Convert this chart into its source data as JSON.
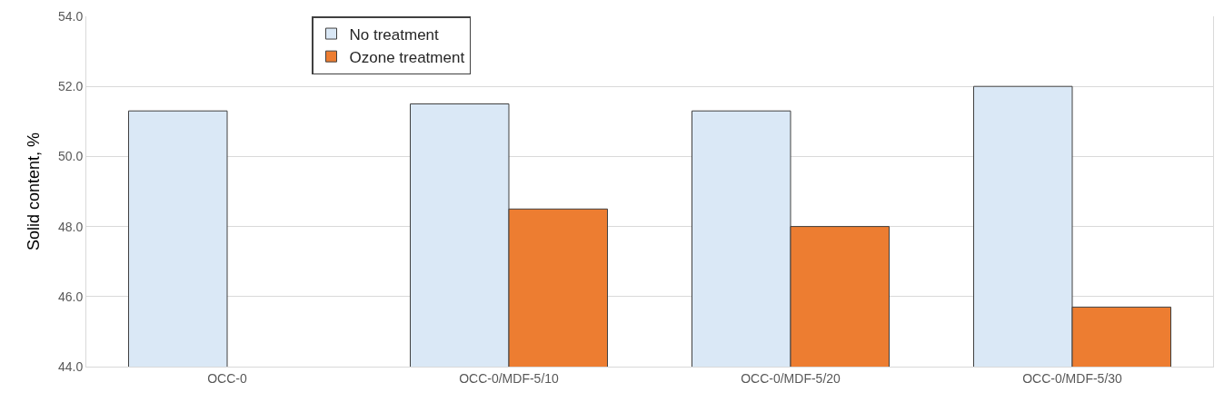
{
  "chart_data": {
    "type": "bar",
    "ylabel": "Solid content, %",
    "categories": [
      "OCC-0",
      "OCC-0/MDF-5/10",
      "OCC-0/MDF-5/20",
      "OCC-0/MDF-5/30"
    ],
    "series": [
      {
        "name": "No treatment",
        "color": "#dae8f6",
        "values": [
          51.3,
          51.5,
          51.3,
          52.0
        ]
      },
      {
        "name": "Ozone treatment",
        "color": "#ed7d31",
        "values": [
          null,
          48.5,
          48.0,
          45.7
        ]
      }
    ],
    "ylim": [
      44,
      54
    ],
    "yticks": [
      {
        "value": 44,
        "label": "44.0"
      },
      {
        "value": 46,
        "label": "46.0"
      },
      {
        "value": 48,
        "label": "48.0"
      },
      {
        "value": 50,
        "label": "50.0"
      },
      {
        "value": 52,
        "label": "52.0"
      },
      {
        "value": 54,
        "label": "54.0"
      }
    ],
    "grid": "y",
    "legend": "top left"
  }
}
